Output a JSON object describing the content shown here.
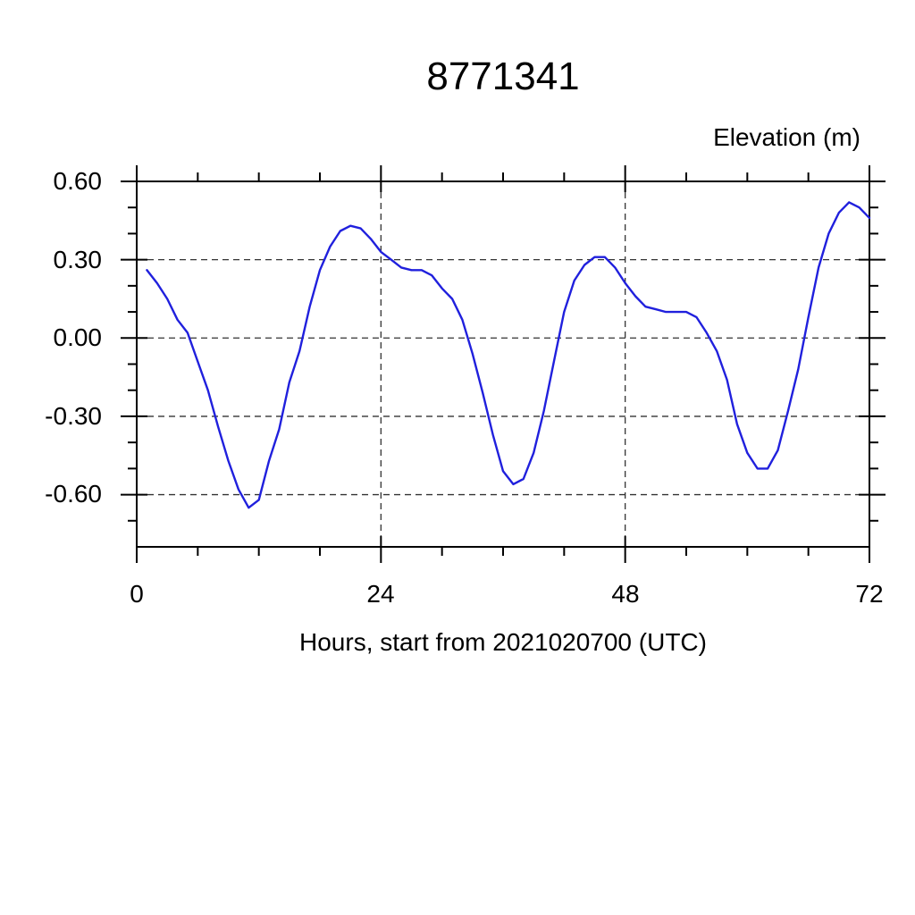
{
  "chart_data": {
    "type": "line",
    "title": "8771341",
    "ylabel": "Elevation (m)",
    "xlabel": "Hours, start from 2021020700 (UTC)",
    "xlim": [
      0,
      72
    ],
    "ylim": [
      -0.8,
      0.6
    ],
    "xticks": [
      0,
      24,
      48,
      72
    ],
    "xtick_labels": [
      "0",
      "24",
      "48",
      "72"
    ],
    "x_minor_step": 6,
    "yticks": [
      0.6,
      0.3,
      0.0,
      -0.3,
      -0.6
    ],
    "ytick_labels": [
      "0.60",
      "0.30",
      "0.00",
      "-0.30",
      "-0.60"
    ],
    "y_minor_step": 0.1,
    "grid": "dashed at major ticks",
    "legend": "none",
    "line_color": "#2020dd",
    "frame_color": "#000000",
    "series": [
      {
        "name": "elevation",
        "x_hours": [
          1,
          2,
          3,
          4,
          5,
          6,
          7,
          8,
          9,
          10,
          11,
          12,
          13,
          14,
          15,
          16,
          17,
          18,
          19,
          20,
          21,
          22,
          23,
          24,
          25,
          26,
          27,
          28,
          29,
          30,
          31,
          32,
          33,
          34,
          35,
          36,
          37,
          38,
          39,
          40,
          41,
          42,
          43,
          44,
          45,
          46,
          47,
          48,
          49,
          50,
          51,
          52,
          53,
          54,
          55,
          56,
          57,
          58,
          59,
          60,
          61,
          62,
          63,
          64,
          65,
          66,
          67,
          68,
          69,
          70,
          71,
          72
        ],
        "elevation_m": [
          0.26,
          0.21,
          0.15,
          0.07,
          0.02,
          -0.09,
          -0.2,
          -0.34,
          -0.47,
          -0.58,
          -0.65,
          -0.62,
          -0.47,
          -0.35,
          -0.17,
          -0.05,
          0.12,
          0.26,
          0.35,
          0.41,
          0.43,
          0.42,
          0.38,
          0.33,
          0.3,
          0.27,
          0.26,
          0.26,
          0.24,
          0.19,
          0.15,
          0.07,
          -0.06,
          -0.21,
          -0.37,
          -0.51,
          -0.56,
          -0.54,
          -0.44,
          -0.28,
          -0.09,
          0.1,
          0.22,
          0.28,
          0.31,
          0.31,
          0.27,
          0.21,
          0.16,
          0.12,
          0.11,
          0.1,
          0.1,
          0.1,
          0.08,
          0.02,
          -0.05,
          -0.16,
          -0.33,
          -0.44,
          -0.5,
          -0.5,
          -0.43,
          -0.28,
          -0.12,
          0.08,
          0.27,
          0.4,
          0.48,
          0.52,
          0.5,
          0.46
        ]
      }
    ]
  }
}
